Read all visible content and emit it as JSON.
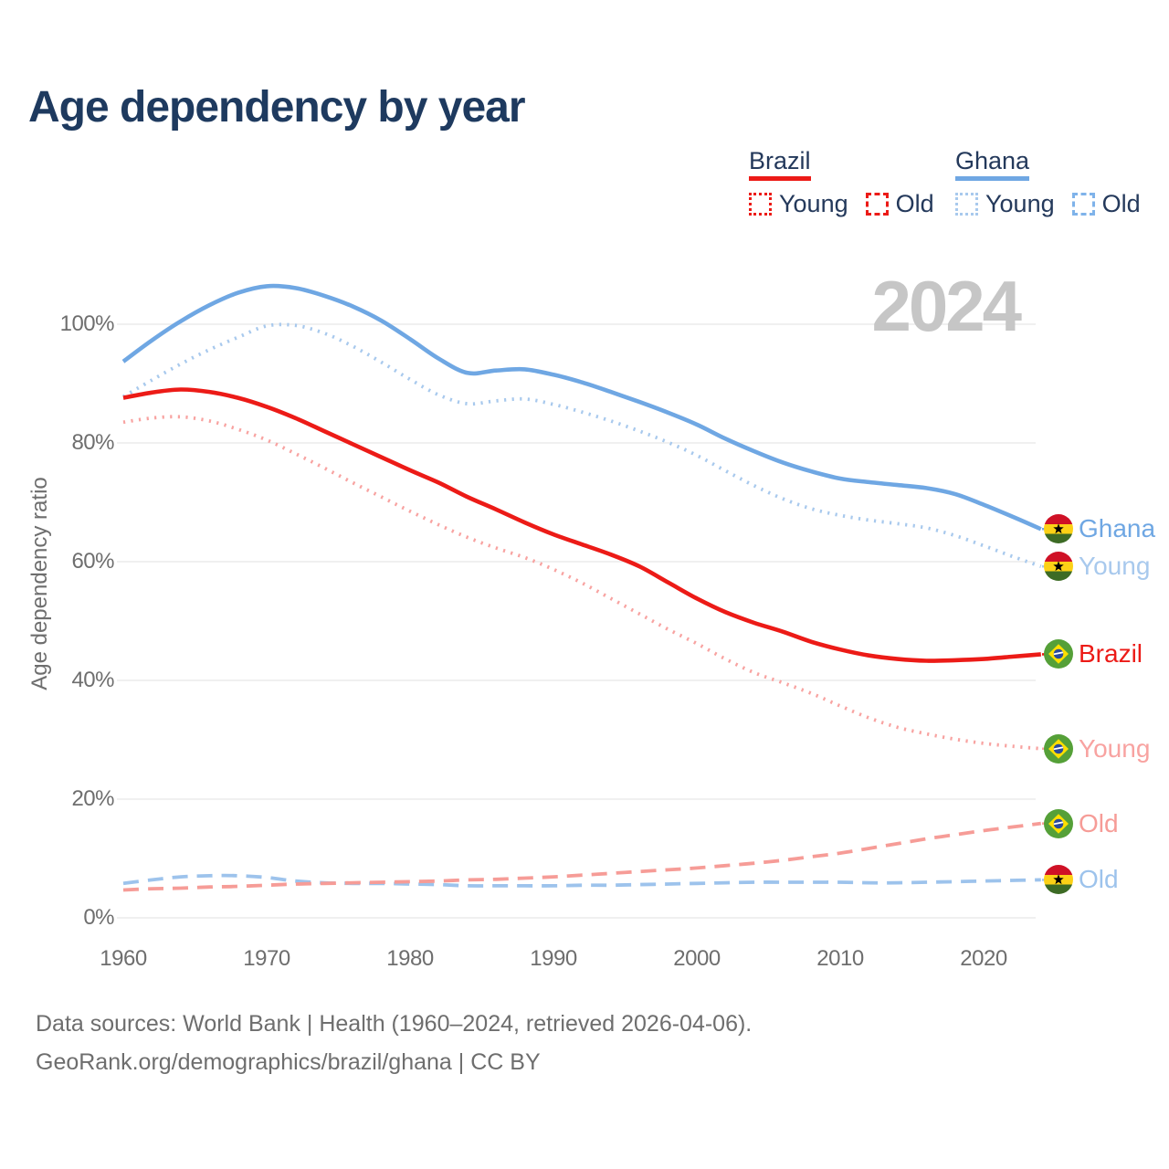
{
  "title": "Age dependency by year",
  "watermark": "2024",
  "legend": {
    "groups": [
      {
        "label": "Brazil",
        "items": [
          {
            "label": "Young",
            "style": "dotted"
          },
          {
            "label": "Old",
            "style": "dashed"
          }
        ]
      },
      {
        "label": "Ghana",
        "items": [
          {
            "label": "Young",
            "style": "dotted"
          },
          {
            "label": "Old",
            "style": "dashed"
          }
        ]
      }
    ]
  },
  "y_axis": {
    "title": "Age dependency ratio",
    "ticks": [
      {
        "label": "100%",
        "value": 100
      },
      {
        "label": "80%",
        "value": 80
      },
      {
        "label": "60%",
        "value": 60
      },
      {
        "label": "40%",
        "value": 40
      },
      {
        "label": "20%",
        "value": 20
      },
      {
        "label": "0%",
        "value": 0
      }
    ]
  },
  "x_axis": {
    "ticks": [
      {
        "label": "1960",
        "value": 1960
      },
      {
        "label": "1970",
        "value": 1970
      },
      {
        "label": "1980",
        "value": 1980
      },
      {
        "label": "1990",
        "value": 1990
      },
      {
        "label": "2000",
        "value": 2000
      },
      {
        "label": "2010",
        "value": 2010
      },
      {
        "label": "2020",
        "value": 2020
      }
    ]
  },
  "footer": {
    "line1": "Data sources: World Bank | Health (1960–2024, retrieved 2026-04-06).",
    "line2": "GeoRank.org/demographics/brazil/ghana | CC BY"
  },
  "colors": {
    "navy": "#24395B",
    "title": "#1E3A5F",
    "brazil_solid": "#EC1B17",
    "brazil_young": "#F8A3A1",
    "brazil_old": "#F69C97",
    "ghana_solid": "#6FA7E3",
    "ghana_young": "#A8C9ED",
    "ghana_old": "#9DC3EC",
    "axis_text": "#6E6E6E",
    "gridline": "#ECECEC",
    "watermark": "#C6C6C6",
    "ghana_flag": [
      "#CF1126",
      "#FCD116",
      "#3D6B25",
      "#000000"
    ],
    "brazil_flag": [
      "#55A038",
      "#FEDF00",
      "#2A4B9B",
      "#FFFFFF"
    ]
  },
  "end_labels": [
    {
      "text": "Ghana",
      "flag": "ghana",
      "series": 0
    },
    {
      "text": "Young",
      "flag": "ghana",
      "series": 1
    },
    {
      "text": "Brazil",
      "flag": "brazil",
      "series": 3
    },
    {
      "text": "Young",
      "flag": "brazil",
      "series": 4
    },
    {
      "text": "Old",
      "flag": "brazil",
      "series": 5
    },
    {
      "text": "Old",
      "flag": "ghana",
      "series": 2
    }
  ],
  "chart_data": {
    "type": "line",
    "title": "Age dependency by year",
    "xlabel": "",
    "ylabel": "Age dependency ratio",
    "xlim": [
      1960,
      2024
    ],
    "ylim": [
      0,
      110
    ],
    "grid": "horizontal",
    "legend_position": "top-right",
    "x": [
      1960,
      1962,
      1964,
      1966,
      1968,
      1970,
      1972,
      1974,
      1976,
      1978,
      1980,
      1982,
      1984,
      1986,
      1988,
      1990,
      1992,
      1994,
      1996,
      1998,
      2000,
      2002,
      2004,
      2006,
      2008,
      2010,
      2012,
      2014,
      2016,
      2018,
      2020,
      2022,
      2024
    ],
    "series": [
      {
        "name": "Ghana total",
        "country": "Ghana",
        "measure": "Total",
        "style": "solid",
        "color": "#6FA7E3",
        "values": [
          93.7,
          97.3,
          100.5,
          103.2,
          105.3,
          106.4,
          106.1,
          104.8,
          103.0,
          100.6,
          97.5,
          94.2,
          91.8,
          92.2,
          92.4,
          91.5,
          90.2,
          88.6,
          86.9,
          85.1,
          83.1,
          80.7,
          78.6,
          76.7,
          75.2,
          74.0,
          73.4,
          72.9,
          72.4,
          71.4,
          69.6,
          67.6,
          65.5
        ]
      },
      {
        "name": "Ghana young",
        "country": "Ghana",
        "measure": "Young",
        "style": "dotted",
        "color": "#A8C9ED",
        "values": [
          87.8,
          90.6,
          93.3,
          95.7,
          97.8,
          99.7,
          99.8,
          98.5,
          96.3,
          93.6,
          90.7,
          88.1,
          86.6,
          87.1,
          87.4,
          86.5,
          85.2,
          83.7,
          82.0,
          80.1,
          77.9,
          75.3,
          72.8,
          70.6,
          68.9,
          67.8,
          67.0,
          66.4,
          65.7,
          64.4,
          62.7,
          60.9,
          59.2
        ]
      },
      {
        "name": "Ghana old",
        "country": "Ghana",
        "measure": "Old",
        "style": "dashed",
        "color": "#9DC3EC",
        "values": [
          5.8,
          6.4,
          6.9,
          7.1,
          7.1,
          6.8,
          6.2,
          5.9,
          5.8,
          5.8,
          5.7,
          5.6,
          5.4,
          5.4,
          5.4,
          5.4,
          5.5,
          5.5,
          5.6,
          5.7,
          5.8,
          5.9,
          6.0,
          6.0,
          6.0,
          6.0,
          5.9,
          5.9,
          6.0,
          6.1,
          6.2,
          6.3,
          6.4
        ]
      },
      {
        "name": "Brazil total",
        "country": "Brazil",
        "measure": "Total",
        "style": "solid",
        "color": "#EC1B17",
        "values": [
          87.6,
          88.5,
          89.0,
          88.6,
          87.6,
          86.1,
          84.2,
          82.0,
          79.8,
          77.6,
          75.4,
          73.3,
          70.9,
          68.8,
          66.6,
          64.6,
          62.9,
          61.2,
          59.2,
          56.5,
          53.8,
          51.5,
          49.7,
          48.2,
          46.5,
          45.2,
          44.2,
          43.6,
          43.3,
          43.4,
          43.6,
          44.0,
          44.4
        ]
      },
      {
        "name": "Brazil young",
        "country": "Brazil",
        "measure": "Young",
        "style": "dotted",
        "color": "#F8A3A1",
        "values": [
          83.5,
          84.2,
          84.4,
          83.7,
          82.3,
          80.5,
          78.2,
          75.8,
          73.3,
          70.9,
          68.5,
          66.2,
          64.1,
          62.3,
          60.7,
          58.7,
          56.4,
          53.8,
          51.2,
          48.6,
          46.2,
          43.6,
          41.3,
          39.6,
          37.8,
          35.7,
          33.7,
          32.1,
          31.0,
          30.1,
          29.4,
          28.9,
          28.5
        ]
      },
      {
        "name": "Brazil old",
        "country": "Brazil",
        "measure": "Old",
        "style": "dashed",
        "color": "#F69C97",
        "values": [
          4.7,
          4.9,
          5.0,
          5.2,
          5.3,
          5.5,
          5.7,
          5.8,
          5.9,
          6.0,
          6.1,
          6.2,
          6.4,
          6.5,
          6.7,
          6.9,
          7.2,
          7.5,
          7.8,
          8.1,
          8.4,
          8.8,
          9.2,
          9.7,
          10.3,
          10.9,
          11.7,
          12.5,
          13.3,
          14.0,
          14.7,
          15.3,
          15.9
        ]
      }
    ]
  }
}
